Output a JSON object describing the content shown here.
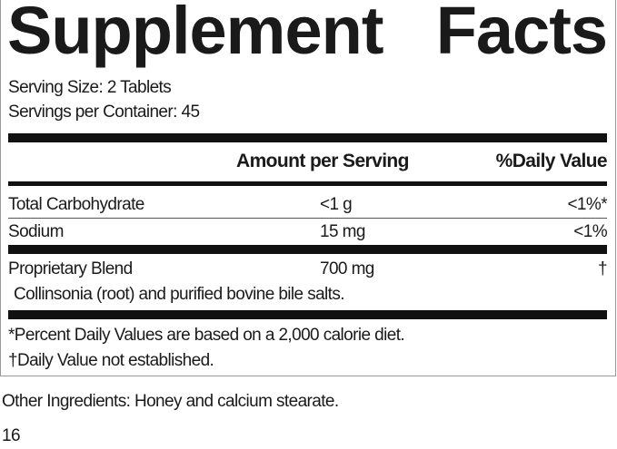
{
  "title": {
    "word1": "Supplement",
    "word2": "Facts"
  },
  "serving_size": "Serving Size: 2 Tablets",
  "servings_per_container": "Servings per Container: 45",
  "header": {
    "amount": "Amount per Serving",
    "daily_value": "%Daily Value"
  },
  "rows": [
    {
      "name": "Total Carbohydrate",
      "amount": "<1 g",
      "dv": "<1%*"
    },
    {
      "name": "Sodium",
      "amount": "15 mg",
      "dv": "<1%"
    },
    {
      "name": "Proprietary Blend",
      "amount": "700 mg",
      "dv": "†",
      "sub": "Collinsonia (root) and purified bovine bile salts."
    }
  ],
  "footnotes": [
    "*Percent Daily Values are based on a 2,000 calorie diet.",
    "†Daily Value not established."
  ],
  "other_ingredients": "Other Ingredients: Honey and calcium stearate.",
  "page_number": "16"
}
